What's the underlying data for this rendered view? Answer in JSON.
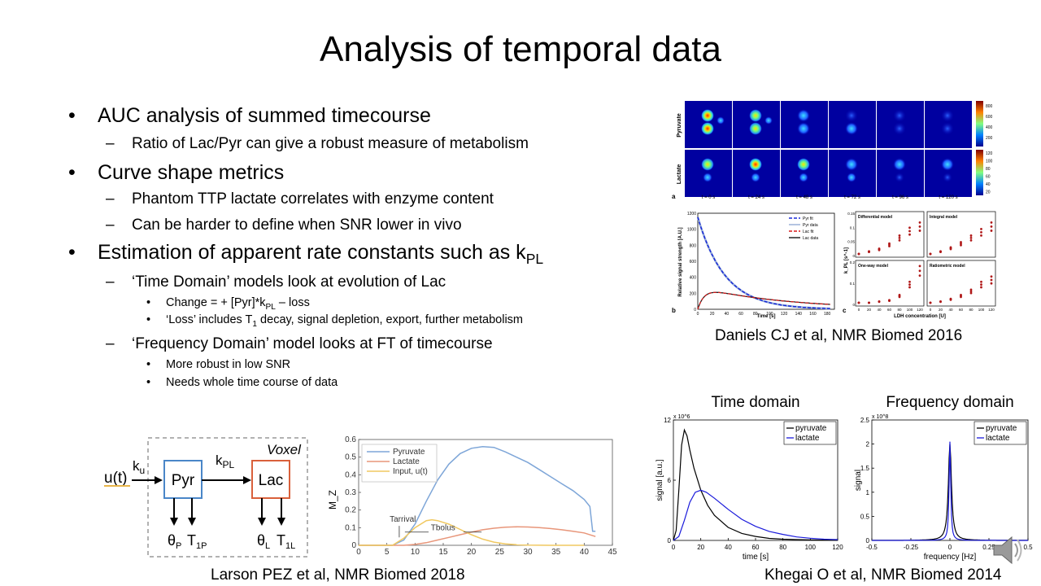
{
  "slide": {
    "title": "Analysis of temporal data",
    "bullets": [
      {
        "level": 1,
        "text": "AUC analysis of summed timecourse"
      },
      {
        "level": 2,
        "text": "Ratio of Lac/Pyr can give a robust measure of metabolism"
      },
      {
        "level": 1,
        "text": "Curve shape metrics"
      },
      {
        "level": 2,
        "text": "Phantom TTP lactate correlates with enzyme  content"
      },
      {
        "level": 2,
        "text": "Can be harder to define when SNR lower in vivo"
      },
      {
        "level": 1,
        "text": "Estimation of apparent rate constants such as k",
        "sub": "PL"
      },
      {
        "level": 2,
        "text": "‘Time Domain’ models look at evolution of Lac"
      },
      {
        "level": 3,
        "text": "Change = + [Pyr]*k",
        "sub": "PL",
        "after": " – loss"
      },
      {
        "level": 3,
        "text": "‘Loss’ includes T",
        "sub": "1",
        "after": " decay, signal depletion, export, further metabolism"
      },
      {
        "level": 2,
        "text": "‘Frequency Domain’ model looks at FT of timecourse"
      },
      {
        "level": 3,
        "text": "More robust in low SNR"
      },
      {
        "level": 3,
        "text": "Needs whole time course of data"
      }
    ]
  },
  "captions": {
    "daniels": "Daniels CJ et al, NMR Biomed 2016",
    "larson": "Larson PEZ et al, NMR Biomed 2018",
    "khegai": "Khegai O et al, NMR Biomed 2014"
  },
  "daniels_figure": {
    "row_labels": [
      "Pyruvate",
      "Lactate"
    ],
    "time_labels": [
      "t = 0 s",
      "t = 24 s",
      "t = 48 s",
      "t = 72 s",
      "t = 96 s",
      "t = 120 s"
    ],
    "colorbar_pyr": [
      "800",
      "600",
      "400",
      "200"
    ],
    "colorbar_lac": [
      "120",
      "100",
      "80",
      "60",
      "40",
      "20"
    ],
    "panel_letters": [
      "a",
      "b",
      "c"
    ],
    "b_legend": [
      "Pyr fit",
      "Pyr data",
      "Lac fit",
      "Lac data"
    ],
    "b_ylabel": "Relative signal strength [A.U.]",
    "b_xlabel": "Time [s]",
    "b_yticks": [
      "1200",
      "1000",
      "800",
      "600",
      "400",
      "200",
      "0"
    ],
    "b_xticks": [
      "0",
      "20",
      "40",
      "60",
      "80",
      "100",
      "120",
      "140",
      "160",
      "180"
    ],
    "c_titles": [
      "Differential model",
      "Integral model",
      "One-way model",
      "Ratiometric model"
    ],
    "c_xlabel": "LDH concentration [U]",
    "c_ylabel": "k_PL [s^-1]",
    "c_yticks_top": [
      "0.15",
      "0.1",
      "0.05",
      "0"
    ],
    "c_yticks_bot": [
      "0.2",
      "0.1",
      "0"
    ],
    "c_xticks": [
      "0",
      "20",
      "40",
      "60",
      "80",
      "100",
      "120"
    ]
  },
  "larson_diagram": {
    "voxel_label": "Voxel",
    "input": "u(t)",
    "ku": "k",
    "ku_sub": "u",
    "kpl": "k",
    "kpl_sub": "PL",
    "pyr": "Pyr",
    "lac": "Lac",
    "theta_p": "θ",
    "theta_p_sub": "P",
    "t1p": "T",
    "t1p_sub": "1P",
    "theta_l": "θ",
    "theta_l_sub": "L",
    "t1l": "T",
    "t1l_sub": "1L",
    "colors": {
      "pyr": "#4a86c8",
      "lac": "#d9603b",
      "input": "#e8b54a"
    }
  },
  "chart_data": [
    {
      "type": "line",
      "id": "larson_plot",
      "title": "",
      "xlabel": "",
      "ylabel": "M_Z",
      "xlim": [
        0,
        45
      ],
      "ylim": [
        0,
        0.6
      ],
      "xticks": [
        "0",
        "5",
        "10",
        "15",
        "20",
        "25",
        "30",
        "35",
        "40",
        "45"
      ],
      "yticks": [
        "0",
        "0.1",
        "0.2",
        "0.3",
        "0.4",
        "0.5",
        "0.6"
      ],
      "annotations": [
        "Tarrival",
        "Tbolus"
      ],
      "legend": "top-left",
      "series": [
        {
          "name": "Pyruvate",
          "color": "#7ea6d8",
          "x": [
            0,
            6,
            8,
            10,
            12,
            14,
            16,
            18,
            20,
            22,
            24,
            26,
            28,
            30,
            32,
            34,
            36,
            38,
            40,
            41,
            41.5,
            42
          ],
          "y": [
            0,
            0,
            0.03,
            0.12,
            0.25,
            0.37,
            0.46,
            0.52,
            0.55,
            0.56,
            0.555,
            0.53,
            0.5,
            0.47,
            0.43,
            0.39,
            0.35,
            0.31,
            0.26,
            0.22,
            0.08,
            0.08
          ]
        },
        {
          "name": "Lactate",
          "color": "#e8967a",
          "x": [
            0,
            8,
            10,
            12,
            14,
            16,
            18,
            20,
            22,
            24,
            26,
            28,
            30,
            32,
            34,
            36,
            38,
            40,
            42
          ],
          "y": [
            0,
            0,
            0.005,
            0.015,
            0.03,
            0.045,
            0.06,
            0.075,
            0.088,
            0.097,
            0.103,
            0.105,
            0.104,
            0.1,
            0.095,
            0.088,
            0.08,
            0.07,
            0.05
          ]
        },
        {
          "name": "Input, u(t)",
          "color": "#f0c860",
          "x": [
            0,
            6,
            8,
            10,
            12,
            13,
            14,
            16,
            18,
            20,
            22,
            24,
            26,
            28,
            30,
            34,
            40
          ],
          "y": [
            0,
            0,
            0.04,
            0.1,
            0.14,
            0.145,
            0.14,
            0.12,
            0.09,
            0.06,
            0.035,
            0.018,
            0.008,
            0.003,
            0.001,
            0,
            0
          ]
        }
      ]
    },
    {
      "type": "line",
      "id": "time_domain",
      "title": "Time domain",
      "xlabel": "time  [s]",
      "ylabel": "signal [a.u.]",
      "y_multiplier": "x 10^6",
      "xlim": [
        0,
        120
      ],
      "ylim": [
        0,
        12
      ],
      "xticks": [
        "0",
        "20",
        "40",
        "60",
        "80",
        "100",
        "120"
      ],
      "yticks": [
        "0",
        "6",
        "12"
      ],
      "legend": "top-right",
      "series": [
        {
          "name": "pyruvate",
          "color": "#000000",
          "x": [
            0,
            2,
            4,
            6,
            8,
            10,
            12,
            15,
            20,
            25,
            30,
            40,
            50,
            60,
            70,
            80,
            90,
            100,
            110,
            120
          ],
          "y": [
            0,
            1,
            5,
            9.5,
            11,
            10.4,
            9,
            7.2,
            5,
            3.5,
            2.5,
            1.3,
            0.7,
            0.4,
            0.2,
            0.12,
            0.08,
            0.05,
            0.03,
            0.02
          ]
        },
        {
          "name": "lactate",
          "color": "#1a1adb",
          "x": [
            0,
            4,
            8,
            12,
            16,
            20,
            24,
            30,
            40,
            50,
            60,
            70,
            80,
            90,
            100,
            110,
            120
          ],
          "y": [
            0,
            0.4,
            2,
            3.8,
            4.8,
            5,
            4.8,
            4.2,
            3.1,
            2.1,
            1.4,
            0.9,
            0.6,
            0.35,
            0.22,
            0.12,
            0.08
          ]
        }
      ]
    },
    {
      "type": "line",
      "id": "frequency_domain",
      "title": "Frequency domain",
      "xlabel": "frequency [Hz]",
      "ylabel": "signal",
      "y_multiplier": "x 10^8",
      "xlim": [
        -0.5,
        0.5
      ],
      "ylim": [
        0,
        2.5
      ],
      "xticks": [
        "-0.5",
        "-0.25",
        "0",
        "0.25",
        "0.5"
      ],
      "yticks": [
        "0",
        "0.5",
        "1",
        "1.5",
        "2",
        "2.5"
      ],
      "legend": "top-right",
      "series": [
        {
          "name": "pyruvate",
          "color": "#000000",
          "center": 0,
          "peak": 2.0,
          "width": 0.012
        },
        {
          "name": "lactate",
          "color": "#1a1adb",
          "center": 0,
          "peak": 2.05,
          "width": 0.006
        }
      ]
    }
  ]
}
